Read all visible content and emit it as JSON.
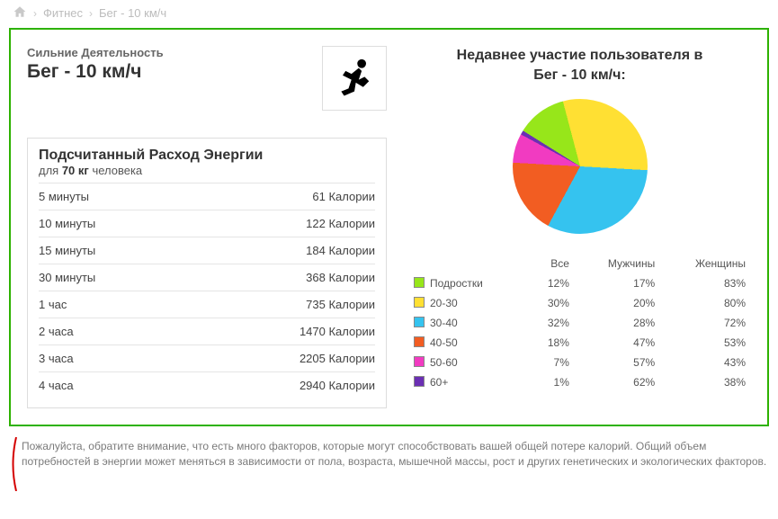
{
  "breadcrumb": {
    "items": [
      "Фитнес",
      "Бег - 10 км/ч"
    ]
  },
  "activity": {
    "kicker": "Сильние Деятельность",
    "title": "Бег - 10 км/ч"
  },
  "energy": {
    "title": "Подсчитанный Расход Энергии",
    "sub_prefix": "для ",
    "sub_weight": "70 кг",
    "sub_suffix": " человека",
    "unit": "Калории",
    "rows": [
      {
        "label": "5 минуты",
        "value": "61 Калории"
      },
      {
        "label": "10 минуты",
        "value": "122 Калории"
      },
      {
        "label": "15 минуты",
        "value": "184 Калории"
      },
      {
        "label": "30 минуты",
        "value": "368 Калории"
      },
      {
        "label": "1 час",
        "value": "735 Калории"
      },
      {
        "label": "2 часа",
        "value": "1470 Калории"
      },
      {
        "label": "3 часа",
        "value": "2205 Калории"
      },
      {
        "label": "4 часа",
        "value": "2940 Калории"
      }
    ]
  },
  "participation": {
    "title_line1": "Недавнее участие пользователя в",
    "title_line2": "Бег - 10 км/ч:",
    "pie": {
      "type": "pie",
      "start_angle_deg": -58,
      "background": "#ffffff",
      "slices": [
        {
          "label": "Подростки",
          "value": 12,
          "color": "#97e61a"
        },
        {
          "label": "20-30",
          "value": 30,
          "color": "#ffe033"
        },
        {
          "label": "30-40",
          "value": 32,
          "color": "#35c3ef"
        },
        {
          "label": "40-50",
          "value": 18,
          "color": "#f25d22"
        },
        {
          "label": "50-60",
          "value": 7,
          "color": "#f13bc1"
        },
        {
          "label": "60+",
          "value": 1,
          "color": "#6b2fb3"
        }
      ]
    },
    "table": {
      "columns": [
        "",
        "Все",
        "Мужчины",
        "Женщины"
      ],
      "rows": [
        {
          "swatch": "#97e61a",
          "label": "Подростки",
          "all": "12%",
          "men": "17%",
          "women": "83%"
        },
        {
          "swatch": "#ffe033",
          "label": "20-30",
          "all": "30%",
          "men": "20%",
          "women": "80%"
        },
        {
          "swatch": "#35c3ef",
          "label": "30-40",
          "all": "32%",
          "men": "28%",
          "women": "72%"
        },
        {
          "swatch": "#f25d22",
          "label": "40-50",
          "all": "18%",
          "men": "47%",
          "women": "53%"
        },
        {
          "swatch": "#f13bc1",
          "label": "50-60",
          "all": "7%",
          "men": "57%",
          "women": "43%"
        },
        {
          "swatch": "#6b2fb3",
          "label": "60+",
          "all": "1%",
          "men": "62%",
          "women": "38%"
        }
      ]
    }
  },
  "note": "Пожалуйста, обратите внимание, что есть много факторов, которые могут способствовать вашей общей потере калорий. Общий объем потребностей в энергии может меняться в зависимости от пола, возраста, мышечной массы, рост и других генетических и экологических факторов.",
  "colors": {
    "frame_border": "#2db200",
    "divider": "#e5e5e5",
    "text_muted": "#7a7a7a",
    "note_accent": "#d40000"
  }
}
